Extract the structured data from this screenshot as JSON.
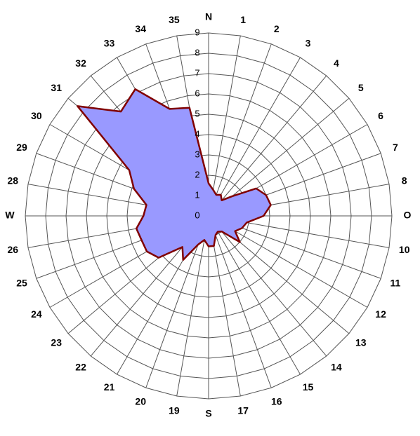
{
  "chart_data": {
    "type": "radar",
    "categories": [
      "N",
      "1",
      "2",
      "3",
      "4",
      "5",
      "6",
      "7",
      "8",
      "O",
      "10",
      "11",
      "12",
      "13",
      "14",
      "15",
      "16",
      "17",
      "S",
      "19",
      "20",
      "21",
      "22",
      "23",
      "24",
      "25",
      "26",
      "W",
      "28",
      "29",
      "30",
      "31",
      "32",
      "33",
      "34",
      "35"
    ],
    "values": [
      1.6,
      1.3,
      1.1,
      1.2,
      1.0,
      1.5,
      2.7,
      3.0,
      3.1,
      2.7,
      1.9,
      1.75,
      1.5,
      2.0,
      1.0,
      0.9,
      1.0,
      1.5,
      1.5,
      1.2,
      1.5,
      2.5,
      2.0,
      3.2,
      3.5,
      3.5,
      3.6,
      3.2,
      3.1,
      3.9,
      4.5,
      8.4,
      6.7,
      7.2,
      5.6,
      5.4
    ],
    "color": "#9999ff",
    "line_color": "#800000",
    "rlim": [
      0,
      9
    ],
    "rticks": [
      0,
      1,
      2,
      3,
      4,
      5,
      6,
      7,
      8,
      9
    ],
    "grid": true
  }
}
